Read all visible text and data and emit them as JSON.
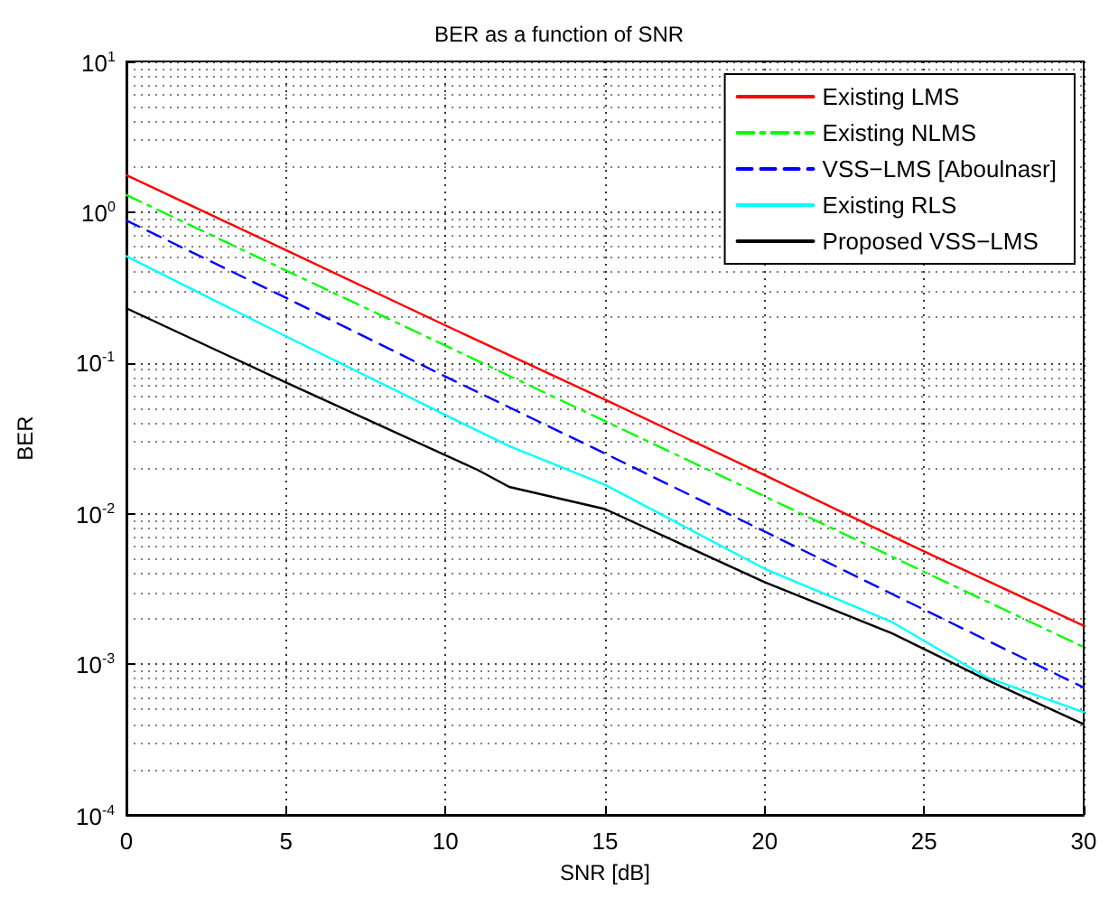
{
  "chart_data": {
    "type": "line",
    "title": "BER as a function of SNR",
    "xlabel": "SNR [dB]",
    "ylabel": "BER",
    "log": "y",
    "grid": true,
    "legend": "top right",
    "marker": "none",
    "xlim": [
      0,
      30
    ],
    "xticks": [
      0,
      5,
      10,
      15,
      20,
      25,
      30
    ],
    "ylim": [
      0.0001,
      10
    ],
    "yticks": [
      {
        "value": 0.0001,
        "label": "10$^{-4}$"
      },
      {
        "value": 0.001,
        "label": "10$^{-3}$"
      },
      {
        "value": 0.01,
        "label": "10$^{-2}$"
      },
      {
        "value": 0.1,
        "label": "10$^{-1}$"
      },
      {
        "value": 1,
        "label": "10$^{0}$"
      },
      {
        "value": 10,
        "label": "10$^{1}$"
      }
    ],
    "series": [
      {
        "name": "Existing LMS",
        "color": "#ff0000",
        "line_style": "solid",
        "x": [
          0,
          5,
          10,
          15,
          20,
          25,
          30
        ],
        "values": [
          1.76,
          0.56,
          0.177,
          0.057,
          0.018,
          0.0056,
          0.0018
        ]
      },
      {
        "name": "Existing NLMS",
        "color": "#00ff00",
        "line_style": "dashdot",
        "x": [
          0,
          5,
          10,
          15,
          20,
          25,
          30
        ],
        "values": [
          1.3,
          0.41,
          0.13,
          0.041,
          0.013,
          0.0041,
          0.0013
        ]
      },
      {
        "name": "VSS−LMS [Aboulnasr]",
        "color": "#0000ff",
        "line_style": "dashed",
        "x": [
          0,
          5,
          10,
          15,
          20,
          25,
          30
        ],
        "values": [
          0.88,
          0.27,
          0.081,
          0.025,
          0.0076,
          0.0023,
          0.0007
        ]
      },
      {
        "name": "Existing RLS",
        "color": "#00ffff",
        "line_style": "solid",
        "x": [
          0,
          5,
          10,
          12,
          15,
          20,
          24,
          27,
          30
        ],
        "values": [
          0.51,
          0.15,
          0.045,
          0.028,
          0.0155,
          0.0043,
          0.0019,
          0.00081,
          0.00048
        ]
      },
      {
        "name": "Proposed VSS−LMS",
        "color": "#000000",
        "line_style": "solid",
        "x": [
          0,
          5,
          11,
          12,
          15,
          20,
          24,
          27,
          30
        ],
        "values": [
          0.23,
          0.074,
          0.0195,
          0.015,
          0.0107,
          0.0035,
          0.0016,
          0.00078,
          0.0004
        ]
      }
    ]
  }
}
